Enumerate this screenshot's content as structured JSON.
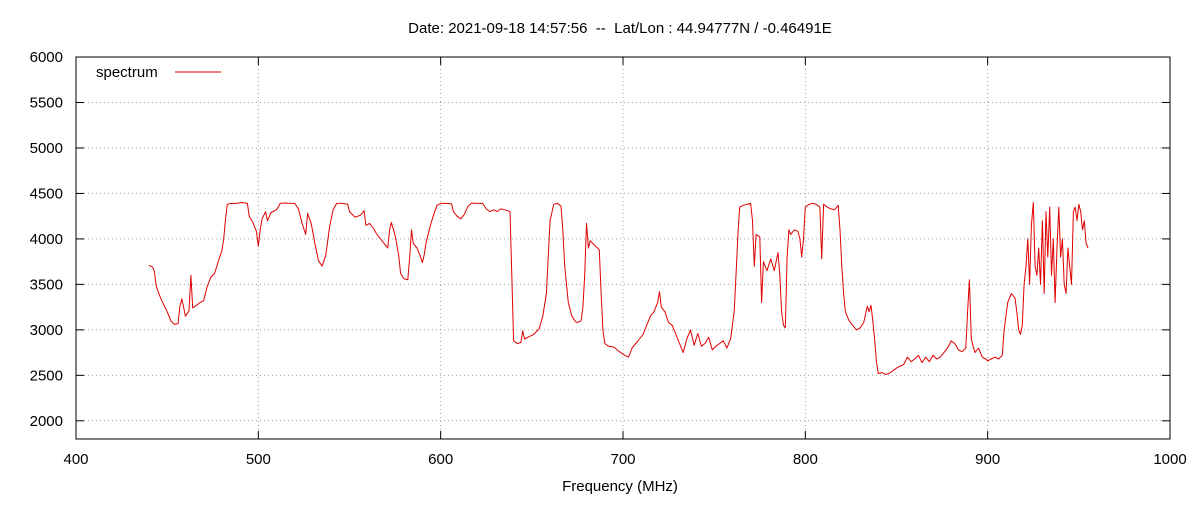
{
  "chart_data": {
    "type": "line",
    "title": "Date: 2021-09-18 14:57:56  --  Lat/Lon : 44.94777N / -0.46491E",
    "xlabel": "Frequency (MHz)",
    "ylabel": "",
    "xlim": [
      400,
      1000
    ],
    "ylim": [
      1800,
      6000
    ],
    "xticks": [
      400,
      500,
      600,
      700,
      800,
      900,
      1000
    ],
    "yticks": [
      2000,
      2500,
      3000,
      3500,
      4000,
      4500,
      5000,
      5500,
      6000
    ],
    "grid": true,
    "legend_position": "top-left",
    "series": [
      {
        "name": "spectrum",
        "color": "#e00000",
        "points": [
          [
            440,
            3710
          ],
          [
            442,
            3690
          ],
          [
            443,
            3640
          ],
          [
            444,
            3480
          ],
          [
            446,
            3370
          ],
          [
            448,
            3280
          ],
          [
            450,
            3200
          ],
          [
            452,
            3100
          ],
          [
            454,
            3060
          ],
          [
            456,
            3070
          ],
          [
            457,
            3260
          ],
          [
            458,
            3340
          ],
          [
            459,
            3250
          ],
          [
            460,
            3150
          ],
          [
            462,
            3210
          ],
          [
            463,
            3600
          ],
          [
            464,
            3240
          ],
          [
            466,
            3270
          ],
          [
            468,
            3300
          ],
          [
            470,
            3320
          ],
          [
            472,
            3480
          ],
          [
            474,
            3580
          ],
          [
            476,
            3620
          ],
          [
            478,
            3750
          ],
          [
            480,
            3870
          ],
          [
            481,
            4000
          ],
          [
            482,
            4220
          ],
          [
            483,
            4380
          ],
          [
            485,
            4390
          ],
          [
            488,
            4390
          ],
          [
            491,
            4400
          ],
          [
            494,
            4390
          ],
          [
            495,
            4250
          ],
          [
            497,
            4180
          ],
          [
            499,
            4080
          ],
          [
            500,
            3920
          ],
          [
            501,
            4100
          ],
          [
            502,
            4220
          ],
          [
            504,
            4300
          ],
          [
            505,
            4200
          ],
          [
            507,
            4290
          ],
          [
            510,
            4320
          ],
          [
            512,
            4390
          ],
          [
            515,
            4395
          ],
          [
            518,
            4390
          ],
          [
            520,
            4390
          ],
          [
            522,
            4330
          ],
          [
            524,
            4170
          ],
          [
            526,
            4050
          ],
          [
            527,
            4280
          ],
          [
            529,
            4170
          ],
          [
            531,
            3950
          ],
          [
            533,
            3760
          ],
          [
            535,
            3700
          ],
          [
            537,
            3820
          ],
          [
            539,
            4120
          ],
          [
            541,
            4320
          ],
          [
            543,
            4390
          ],
          [
            546,
            4390
          ],
          [
            549,
            4380
          ],
          [
            550,
            4300
          ],
          [
            553,
            4240
          ],
          [
            556,
            4260
          ],
          [
            558,
            4310
          ],
          [
            559,
            4150
          ],
          [
            561,
            4170
          ],
          [
            563,
            4120
          ],
          [
            565,
            4050
          ],
          [
            567,
            4000
          ],
          [
            569,
            3950
          ],
          [
            571,
            3900
          ],
          [
            572,
            4100
          ],
          [
            573,
            4180
          ],
          [
            575,
            4040
          ],
          [
            577,
            3820
          ],
          [
            578,
            3620
          ],
          [
            580,
            3560
          ],
          [
            582,
            3550
          ],
          [
            583,
            3800
          ],
          [
            584,
            4100
          ],
          [
            585,
            3950
          ],
          [
            587,
            3900
          ],
          [
            589,
            3800
          ],
          [
            590,
            3740
          ],
          [
            591,
            3830
          ],
          [
            592,
            3960
          ],
          [
            594,
            4120
          ],
          [
            596,
            4260
          ],
          [
            598,
            4370
          ],
          [
            600,
            4390
          ],
          [
            603,
            4390
          ],
          [
            606,
            4385
          ],
          [
            607,
            4300
          ],
          [
            609,
            4250
          ],
          [
            611,
            4220
          ],
          [
            613,
            4270
          ],
          [
            615,
            4360
          ],
          [
            617,
            4395
          ],
          [
            620,
            4390
          ],
          [
            623,
            4390
          ],
          [
            625,
            4330
          ],
          [
            627,
            4300
          ],
          [
            629,
            4320
          ],
          [
            631,
            4300
          ],
          [
            633,
            4330
          ],
          [
            635,
            4320
          ],
          [
            637,
            4310
          ],
          [
            638,
            4300
          ],
          [
            639,
            3600
          ],
          [
            640,
            2880
          ],
          [
            642,
            2850
          ],
          [
            644,
            2860
          ],
          [
            645,
            2990
          ],
          [
            646,
            2900
          ],
          [
            648,
            2920
          ],
          [
            651,
            2950
          ],
          [
            654,
            3010
          ],
          [
            656,
            3150
          ],
          [
            658,
            3400
          ],
          [
            659,
            3800
          ],
          [
            660,
            4200
          ],
          [
            662,
            4380
          ],
          [
            664,
            4390
          ],
          [
            666,
            4360
          ],
          [
            667,
            4100
          ],
          [
            668,
            3700
          ],
          [
            670,
            3300
          ],
          [
            672,
            3150
          ],
          [
            674,
            3090
          ],
          [
            675,
            3080
          ],
          [
            677,
            3100
          ],
          [
            678,
            3250
          ],
          [
            679,
            3600
          ],
          [
            680,
            4170
          ],
          [
            681,
            3900
          ],
          [
            682,
            3980
          ],
          [
            684,
            3940
          ],
          [
            686,
            3900
          ],
          [
            687,
            3880
          ],
          [
            688,
            3400
          ],
          [
            689,
            3000
          ],
          [
            690,
            2850
          ],
          [
            692,
            2820
          ],
          [
            695,
            2810
          ],
          [
            698,
            2760
          ],
          [
            701,
            2720
          ],
          [
            703,
            2700
          ],
          [
            705,
            2800
          ],
          [
            707,
            2850
          ],
          [
            709,
            2900
          ],
          [
            711,
            2950
          ],
          [
            713,
            3050
          ],
          [
            715,
            3150
          ],
          [
            717,
            3200
          ],
          [
            719,
            3300
          ],
          [
            720,
            3420
          ],
          [
            721,
            3250
          ],
          [
            723,
            3200
          ],
          [
            725,
            3080
          ],
          [
            727,
            3050
          ],
          [
            729,
            2950
          ],
          [
            731,
            2850
          ],
          [
            733,
            2750
          ],
          [
            735,
            2900
          ],
          [
            737,
            3000
          ],
          [
            739,
            2830
          ],
          [
            741,
            2960
          ],
          [
            743,
            2820
          ],
          [
            745,
            2850
          ],
          [
            747,
            2920
          ],
          [
            749,
            2780
          ],
          [
            751,
            2820
          ],
          [
            753,
            2850
          ],
          [
            755,
            2880
          ],
          [
            757,
            2800
          ],
          [
            759,
            2900
          ],
          [
            761,
            3200
          ],
          [
            762,
            3600
          ],
          [
            763,
            4050
          ],
          [
            764,
            4350
          ],
          [
            766,
            4370
          ],
          [
            768,
            4380
          ],
          [
            770,
            4390
          ],
          [
            771,
            4200
          ],
          [
            772,
            3700
          ],
          [
            773,
            4050
          ],
          [
            775,
            4020
          ],
          [
            776,
            3300
          ],
          [
            777,
            3750
          ],
          [
            778,
            3700
          ],
          [
            779,
            3650
          ],
          [
            781,
            3780
          ],
          [
            783,
            3650
          ],
          [
            785,
            3850
          ],
          [
            786,
            3600
          ],
          [
            787,
            3200
          ],
          [
            788,
            3050
          ],
          [
            789,
            3020
          ],
          [
            790,
            3800
          ],
          [
            791,
            4100
          ],
          [
            792,
            4050
          ],
          [
            794,
            4100
          ],
          [
            796,
            4080
          ],
          [
            797,
            4000
          ],
          [
            798,
            3800
          ],
          [
            799,
            4000
          ],
          [
            800,
            4350
          ],
          [
            802,
            4380
          ],
          [
            804,
            4390
          ],
          [
            806,
            4380
          ],
          [
            808,
            4350
          ],
          [
            809,
            3780
          ],
          [
            810,
            4380
          ],
          [
            812,
            4350
          ],
          [
            814,
            4330
          ],
          [
            816,
            4320
          ],
          [
            818,
            4370
          ],
          [
            819,
            4100
          ],
          [
            820,
            3700
          ],
          [
            821,
            3400
          ],
          [
            822,
            3200
          ],
          [
            824,
            3100
          ],
          [
            826,
            3050
          ],
          [
            828,
            3000
          ],
          [
            830,
            3020
          ],
          [
            832,
            3080
          ],
          [
            834,
            3260
          ],
          [
            835,
            3200
          ],
          [
            836,
            3270
          ],
          [
            837,
            3100
          ],
          [
            838,
            2900
          ],
          [
            839,
            2650
          ],
          [
            840,
            2520
          ],
          [
            842,
            2530
          ],
          [
            844,
            2510
          ],
          [
            846,
            2520
          ],
          [
            848,
            2550
          ],
          [
            850,
            2580
          ],
          [
            852,
            2600
          ],
          [
            854,
            2620
          ],
          [
            856,
            2700
          ],
          [
            858,
            2650
          ],
          [
            860,
            2680
          ],
          [
            862,
            2720
          ],
          [
            864,
            2640
          ],
          [
            866,
            2700
          ],
          [
            868,
            2650
          ],
          [
            870,
            2720
          ],
          [
            872,
            2680
          ],
          [
            874,
            2700
          ],
          [
            876,
            2750
          ],
          [
            878,
            2800
          ],
          [
            880,
            2880
          ],
          [
            882,
            2850
          ],
          [
            884,
            2780
          ],
          [
            886,
            2760
          ],
          [
            888,
            2800
          ],
          [
            889,
            3200
          ],
          [
            890,
            3550
          ],
          [
            891,
            2900
          ],
          [
            893,
            2750
          ],
          [
            895,
            2800
          ],
          [
            897,
            2700
          ],
          [
            899,
            2680
          ],
          [
            900,
            2660
          ],
          [
            902,
            2680
          ],
          [
            904,
            2700
          ],
          [
            906,
            2680
          ],
          [
            908,
            2720
          ],
          [
            909,
            3000
          ],
          [
            911,
            3300
          ],
          [
            913,
            3400
          ],
          [
            915,
            3350
          ],
          [
            916,
            3200
          ],
          [
            917,
            3000
          ],
          [
            918,
            2950
          ],
          [
            919,
            3050
          ],
          [
            920,
            3500
          ],
          [
            921,
            3700
          ],
          [
            922,
            4000
          ],
          [
            923,
            3500
          ],
          [
            924,
            4150
          ],
          [
            925,
            4400
          ],
          [
            926,
            3700
          ],
          [
            927,
            3600
          ],
          [
            928,
            3900
          ],
          [
            929,
            3500
          ],
          [
            930,
            4200
          ],
          [
            931,
            3400
          ],
          [
            932,
            4300
          ],
          [
            933,
            3800
          ],
          [
            934,
            4350
          ],
          [
            935,
            3600
          ],
          [
            936,
            4000
          ],
          [
            937,
            3300
          ],
          [
            938,
            3900
          ],
          [
            939,
            4350
          ],
          [
            940,
            3800
          ],
          [
            941,
            4000
          ],
          [
            942,
            3500
          ],
          [
            943,
            3400
          ],
          [
            944,
            3900
          ],
          [
            945,
            3700
          ],
          [
            946,
            3500
          ],
          [
            947,
            4300
          ],
          [
            948,
            4350
          ],
          [
            949,
            4200
          ],
          [
            950,
            4380
          ],
          [
            951,
            4300
          ],
          [
            952,
            4100
          ],
          [
            953,
            4200
          ],
          [
            954,
            3950
          ],
          [
            955,
            3900
          ]
        ]
      }
    ]
  }
}
